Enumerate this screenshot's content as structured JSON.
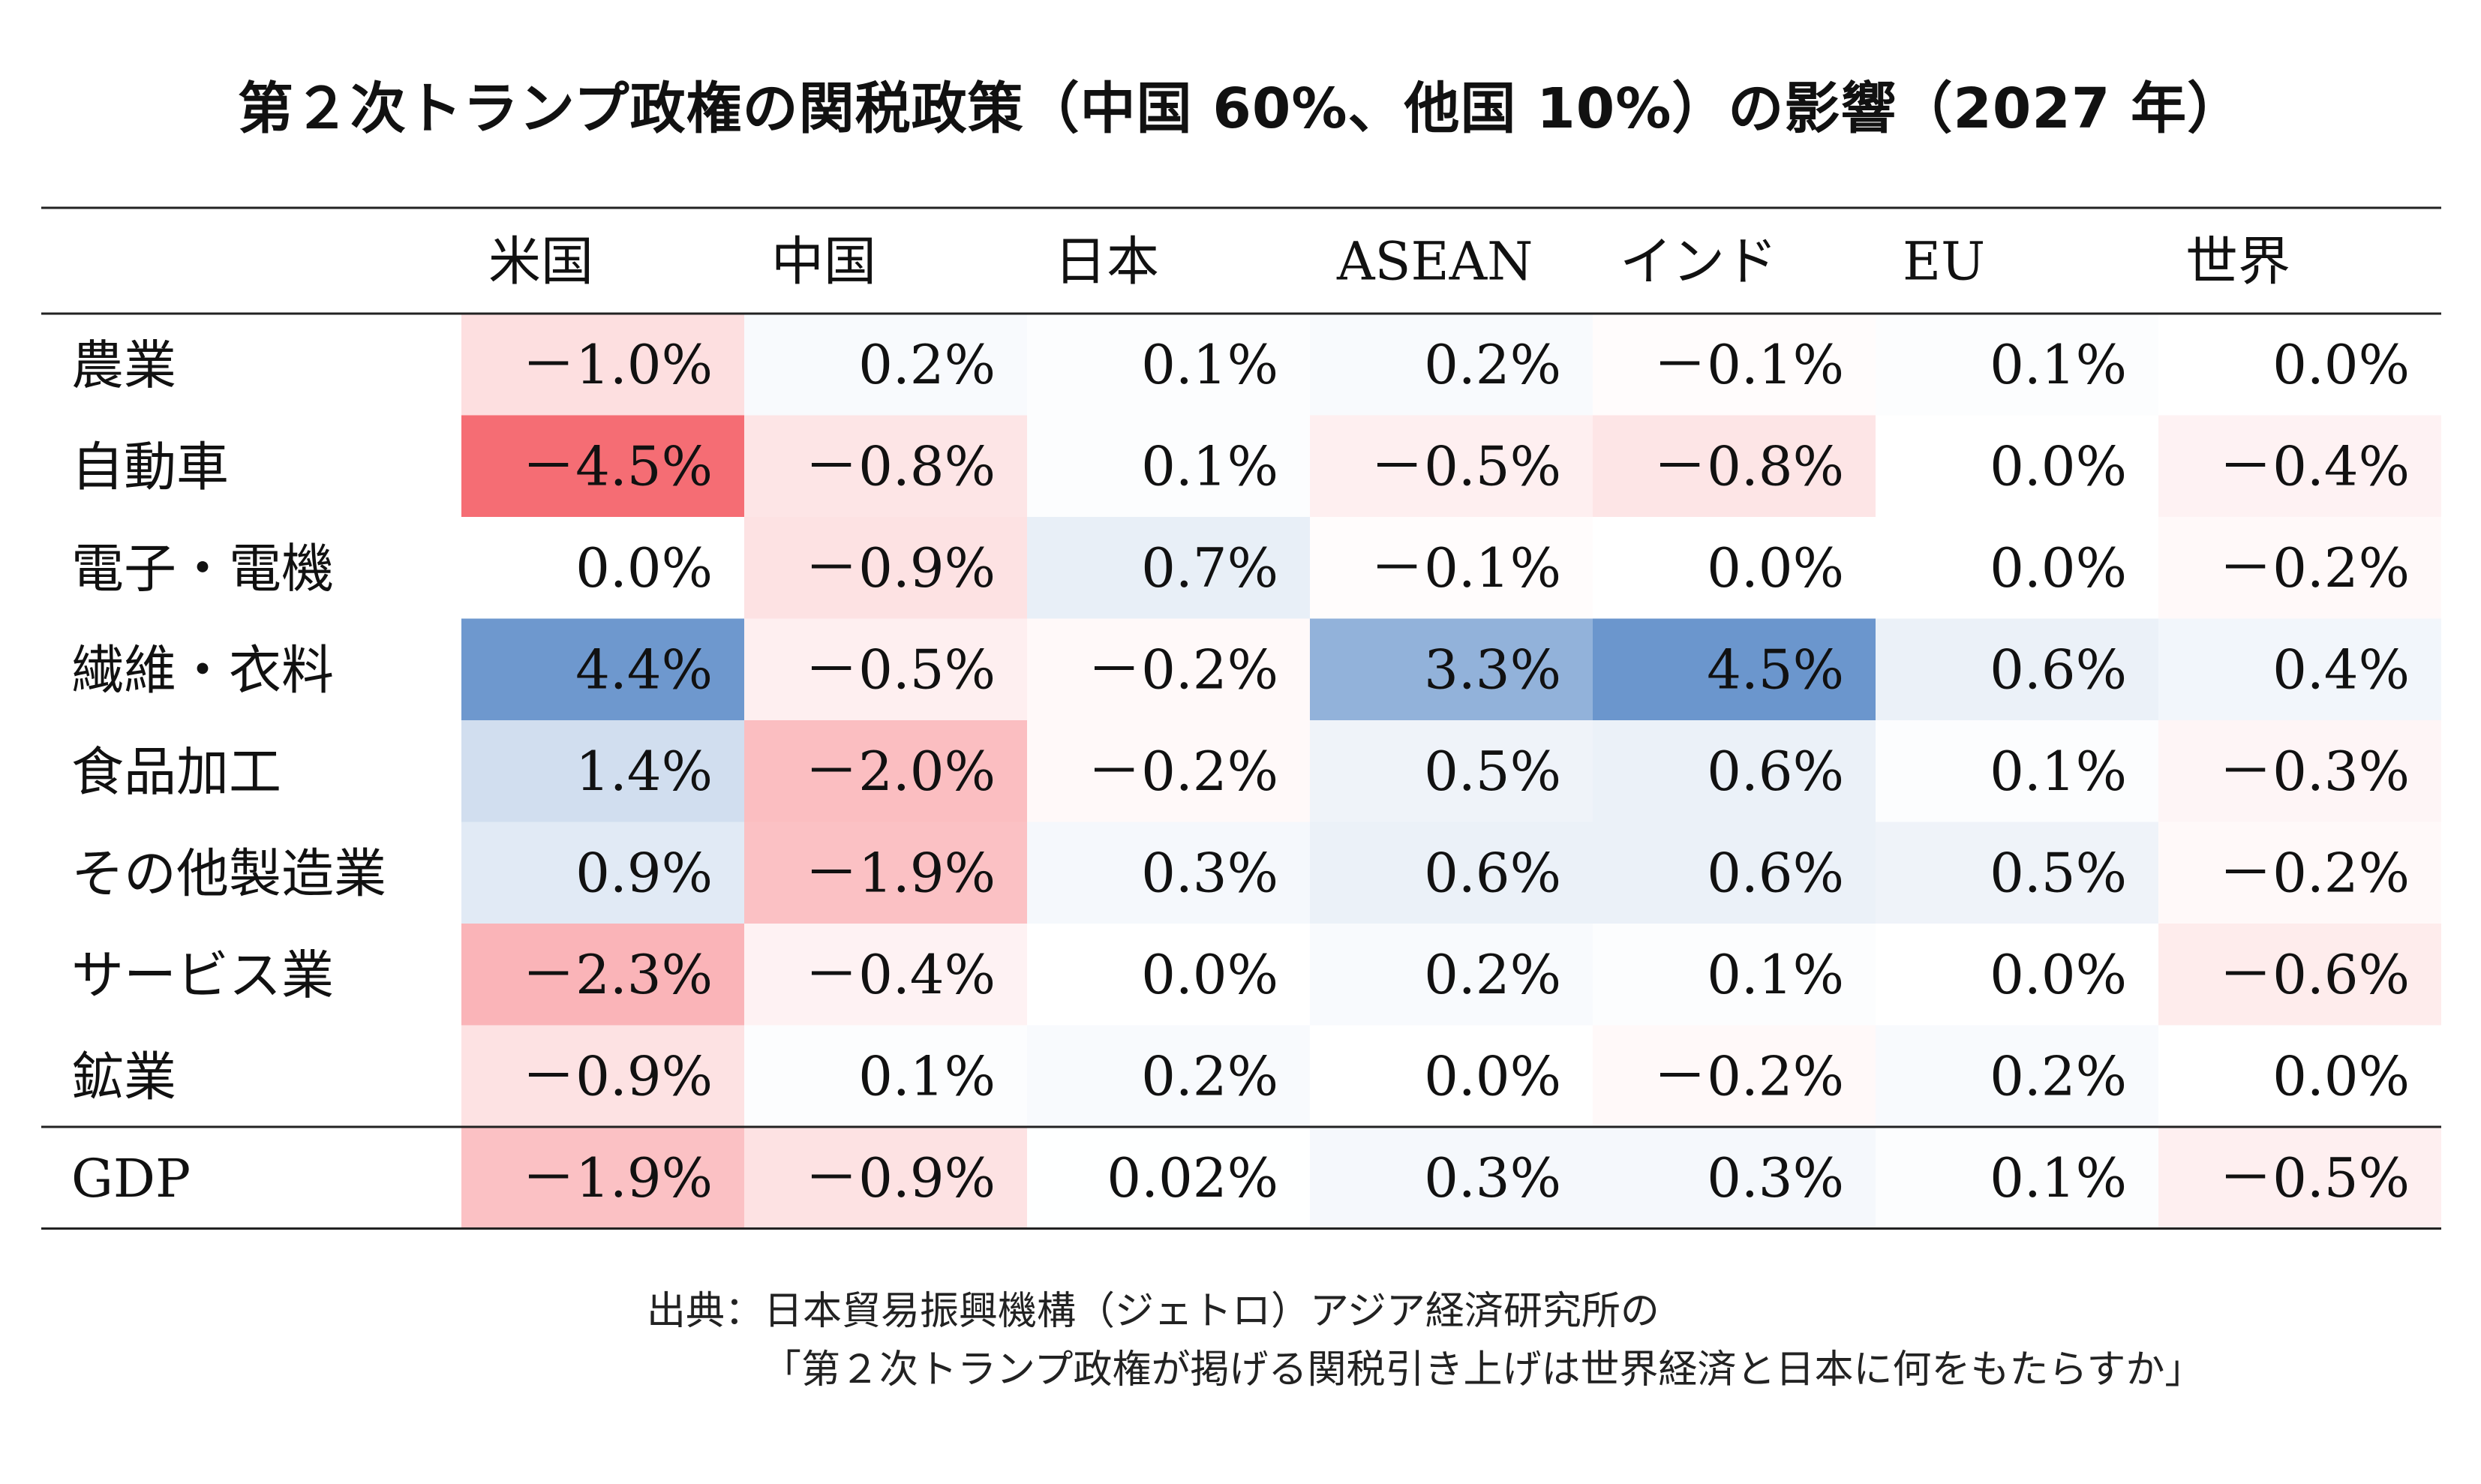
{
  "chart_data": {
    "type": "heatmap",
    "title": "第２次トランプ政権の関税政策（中国 60%、他国 10%）の影響（2027 年）",
    "columns": [
      "米国",
      "中国",
      "日本",
      "ASEAN",
      "インド",
      "EU",
      "世界"
    ],
    "rows": [
      "農業",
      "自動車",
      "電子・電機",
      "繊維・衣料",
      "食品加工",
      "その他製造業",
      "サービス業",
      "鉱業",
      "GDP"
    ],
    "values": [
      [
        -1.0,
        0.2,
        0.1,
        0.2,
        -0.1,
        0.1,
        0.0
      ],
      [
        -4.5,
        -0.8,
        0.1,
        -0.5,
        -0.8,
        0.0,
        -0.4
      ],
      [
        0.0,
        -0.9,
        0.7,
        -0.1,
        0.0,
        0.0,
        -0.2
      ],
      [
        4.4,
        -0.5,
        -0.2,
        3.3,
        4.5,
        0.6,
        0.4
      ],
      [
        1.4,
        -2.0,
        -0.2,
        0.5,
        0.6,
        0.1,
        -0.3
      ],
      [
        0.9,
        -1.9,
        0.3,
        0.6,
        0.6,
        0.5,
        -0.2
      ],
      [
        -2.3,
        -0.4,
        0.0,
        0.2,
        0.1,
        0.0,
        -0.6
      ],
      [
        -0.9,
        0.1,
        0.2,
        0.0,
        -0.2,
        0.2,
        0.0
      ],
      [
        -1.9,
        -0.9,
        0.02,
        0.3,
        0.3,
        0.1,
        -0.5
      ]
    ],
    "labels": [
      [
        "－1.0%",
        "0.2%",
        "0.1%",
        "0.2%",
        "－0.1%",
        "0.1%",
        "0.0%"
      ],
      [
        "－4.5%",
        "－0.8%",
        "0.1%",
        "－0.5%",
        "－0.8%",
        "0.0%",
        "－0.4%"
      ],
      [
        "0.0%",
        "－0.9%",
        "0.7%",
        "－0.1%",
        "0.0%",
        "0.0%",
        "－0.2%"
      ],
      [
        "4.4%",
        "－0.5%",
        "－0.2%",
        "3.3%",
        "4.5%",
        "0.6%",
        "0.4%"
      ],
      [
        "1.4%",
        "－2.0%",
        "－0.2%",
        "0.5%",
        "0.6%",
        "0.1%",
        "－0.3%"
      ],
      [
        "0.9%",
        "－1.9%",
        "0.3%",
        "0.6%",
        "0.6%",
        "0.5%",
        "－0.2%"
      ],
      [
        "－2.3%",
        "－0.4%",
        "0.0%",
        "0.2%",
        "0.1%",
        "0.0%",
        "－0.6%"
      ],
      [
        "－0.9%",
        "0.1%",
        "0.2%",
        "0.0%",
        "－0.2%",
        "0.2%",
        "0.0%"
      ],
      [
        "－1.9%",
        "－0.9%",
        "0.02%",
        "0.3%",
        "0.3%",
        "0.1%",
        "－0.5%"
      ]
    ],
    "colors": {
      "positive": "#6b96cd",
      "negative": "#f56d74",
      "neutral": "#ffffff"
    },
    "grid": false,
    "legend": "none"
  },
  "source": {
    "line1": "出典：日本貿易振興機構（ジェトロ）アジア経済研究所の",
    "line2": "「第２次トランプ政権が掲げる関税引き上げは世界経済と日本に何をもたらすか」"
  }
}
